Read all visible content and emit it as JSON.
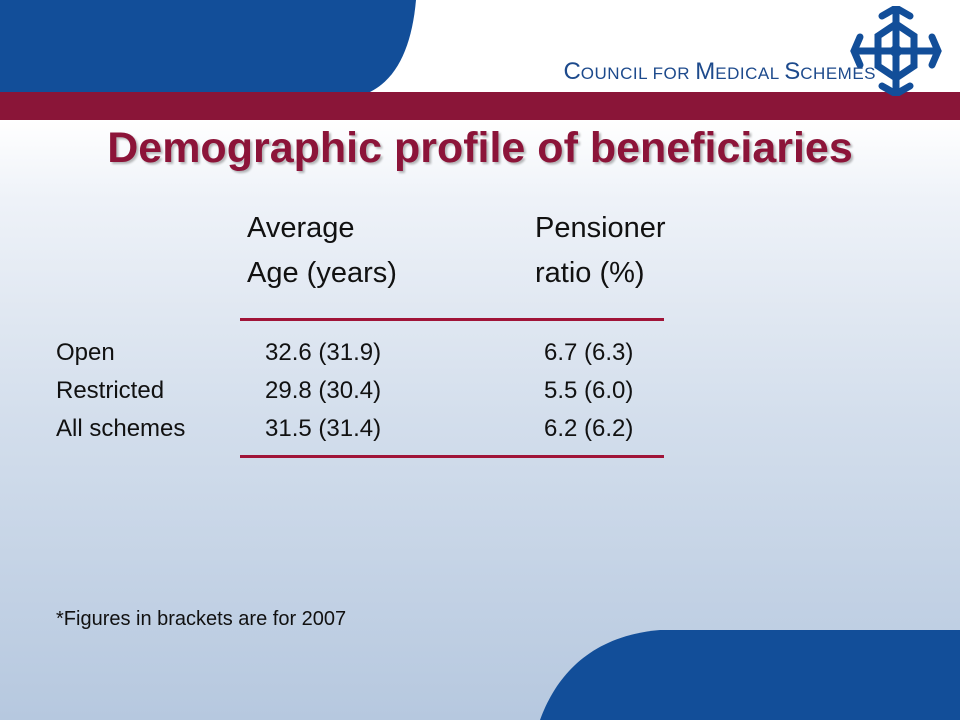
{
  "org": {
    "cap1": "C",
    "rest1": "OUNCIL FOR ",
    "cap2": "M",
    "rest2": "EDICAL ",
    "cap3": "S",
    "rest3": "CHEMES"
  },
  "title": "Demographic profile of beneficiaries",
  "table": {
    "headers": [
      {
        "line1": "Average",
        "line2": "Age (years)"
      },
      {
        "line1": "Pensioner",
        "line2": "ratio (%)"
      }
    ],
    "rows": [
      {
        "label": "Open",
        "age": "32.6 (31.9)",
        "ratio": "6.7 (6.3)"
      },
      {
        "label": "Restricted",
        "age": "29.8 (30.4)",
        "ratio": "5.5 (6.0)"
      },
      {
        "label": "All schemes",
        "age": "31.5 (31.4)",
        "ratio": "6.2 (6.2)"
      }
    ]
  },
  "footnote": "*Figures in brackets are for 2007",
  "colors": {
    "navy": "#124e99",
    "maroon": "#8a1538",
    "brand_text": "#1d4a8c"
  }
}
